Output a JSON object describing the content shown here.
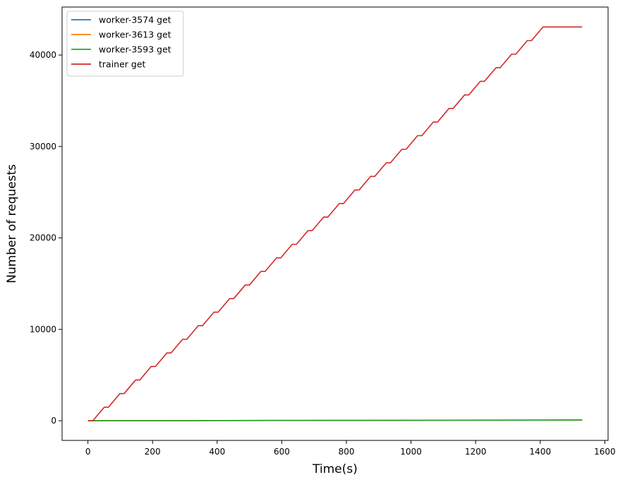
{
  "chart_data": {
    "type": "line",
    "xlabel": "Time(s)",
    "ylabel": "Number of requests",
    "xlim": [
      -80,
      1610
    ],
    "ylim": [
      -2150,
      45250
    ],
    "xticks": [
      0,
      200,
      400,
      600,
      800,
      1000,
      1200,
      1400,
      1600
    ],
    "yticks": [
      0,
      10000,
      20000,
      30000,
      40000
    ],
    "grid": false,
    "legend_position": "top-left",
    "trainer_staircase": {
      "t_start": 0,
      "t_first_rise": 15,
      "t_end": 1530,
      "period_s": 48.5,
      "flat_s": 13,
      "step_requests": 1485,
      "final_value": 43200
    },
    "series": [
      {
        "name": "worker-3574 get",
        "color": "#1f77b4",
        "x": [
          0,
          1530
        ],
        "y": [
          0,
          80
        ]
      },
      {
        "name": "worker-3613 get",
        "color": "#ff7f0e",
        "x": [
          0,
          1530
        ],
        "y": [
          0,
          80
        ]
      },
      {
        "name": "worker-3593 get",
        "color": "#2ca02c",
        "x": [
          0,
          1530
        ],
        "y": [
          0,
          80
        ]
      },
      {
        "name": "trainer get",
        "color": "#d62728",
        "x": [],
        "y": []
      }
    ]
  }
}
